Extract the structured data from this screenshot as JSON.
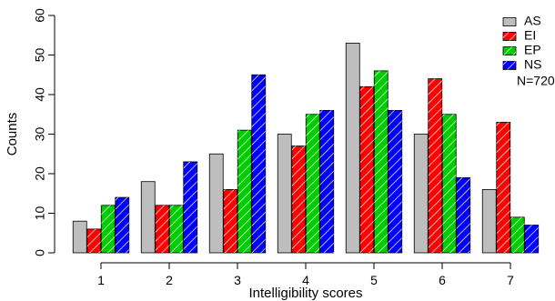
{
  "chart_data": {
    "type": "bar",
    "title": "",
    "xlabel": "Intelligibility scores",
    "ylabel": "Counts",
    "ylim": [
      0,
      60
    ],
    "yticks": [
      0,
      10,
      20,
      30,
      40,
      50,
      60
    ],
    "categories": [
      "1",
      "2",
      "3",
      "4",
      "5",
      "6",
      "7"
    ],
    "series": [
      {
        "name": "AS",
        "values": [
          8,
          18,
          25,
          30,
          53,
          30,
          16
        ],
        "color": "#bebebe",
        "hatch": false
      },
      {
        "name": "EI",
        "values": [
          6,
          12,
          16,
          27,
          42,
          44,
          33
        ],
        "color": "#ff0000",
        "hatch": true
      },
      {
        "name": "EP",
        "values": [
          12,
          12,
          31,
          35,
          46,
          35,
          9
        ],
        "color": "#00cd00",
        "hatch": true
      },
      {
        "name": "NS",
        "values": [
          14,
          23,
          45,
          36,
          36,
          19,
          7
        ],
        "color": "#0000ff",
        "hatch": true
      }
    ],
    "legend": {
      "position": "top-right",
      "note": "N=720"
    },
    "grid": false
  }
}
